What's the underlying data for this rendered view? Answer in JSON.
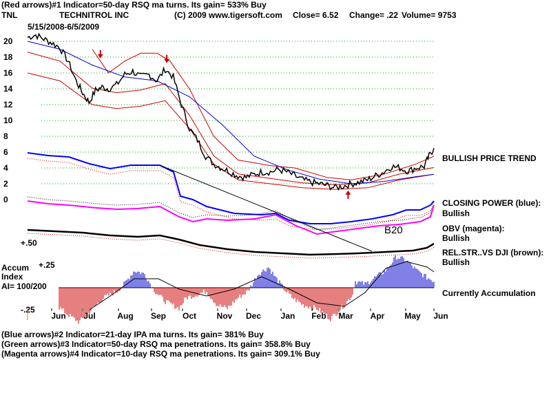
{
  "header": {
    "line1": "(Red arrows)#1 Indicator=50-day RSQ ma turns. Its gain= 533% Buy",
    "ticker": "TNL",
    "company": "TECHNITROL INC",
    "copyright": "(C) 2009 www.tigersoft.com",
    "close": "Close=  6.52",
    "change": "Change= .22",
    "volume": "Volume= 9753",
    "daterange": "5/15/2008-6/5/2009"
  },
  "panel_labels": {
    "trend": "BULLISH PRICE TREND",
    "cp_title": "CLOSING POWER (blue):",
    "cp_value": "Bullish",
    "obv_title": "OBV (magenta):",
    "obv_value": "Bullish",
    "rs_title": "REL.STR..VS DJI (brown):",
    "rs_value": "Bullish",
    "accum_status": "Currently Accumulation",
    "accum_title1": "Accum",
    "accum_title2": "Index",
    "ai": "AI= 100/200",
    "b20": "B20"
  },
  "footer": {
    "line1": "(Blue arrows)#2 Indicator=21-day IPA ma turns. Its gain= 381% Buy",
    "line2": "(Green arrows)#3 Indicator=50-day RSQ ma penetrations. Its gain= 358.8% Buy",
    "line3": "(Magenta arrows)#4 Indicator=10-day RSQ ma penetrations. Its gain= 309.1% Buy"
  },
  "colors": {
    "price": "#000000",
    "bands": "#cc0000",
    "ma_blue": "#0000cc",
    "closing_power": "#0000ff",
    "obv": "#ff00ff",
    "rel_strength": "#000000",
    "accum_pos": "#0000cc",
    "accum_neg": "#cc0000",
    "grid": "#00aa00"
  },
  "chart_data": {
    "type": "line",
    "yticks": [
      0,
      2,
      4,
      6,
      8,
      10,
      12,
      14,
      16,
      18,
      20
    ],
    "ylim": [
      0,
      21
    ],
    "x_month_labels": [
      "Jun",
      "Jul",
      "Aug",
      "Sep",
      "Oct",
      "Nov",
      "Dec",
      "Jan",
      "Feb",
      "Mar",
      "Apr",
      "May",
      "Jun"
    ],
    "accum_ticks": [
      "+.50",
      "+.25",
      "-.25"
    ],
    "price": [
      [
        0,
        20.5
      ],
      [
        5,
        20.8
      ],
      [
        10,
        20.3
      ],
      [
        15,
        19.8
      ],
      [
        20,
        19.2
      ],
      [
        25,
        17.5
      ],
      [
        30,
        15.0
      ],
      [
        34,
        13.5
      ],
      [
        38,
        12.3
      ],
      [
        42,
        13.8
      ],
      [
        46,
        14.2
      ],
      [
        50,
        14.0
      ],
      [
        55,
        14.5
      ],
      [
        60,
        15.8
      ],
      [
        65,
        16.2
      ],
      [
        70,
        15.5
      ],
      [
        75,
        15.8
      ],
      [
        80,
        15.0
      ],
      [
        85,
        16.5
      ],
      [
        90,
        15.5
      ],
      [
        95,
        12.0
      ],
      [
        100,
        9.0
      ],
      [
        105,
        7.5
      ],
      [
        110,
        5.5
      ],
      [
        115,
        4.5
      ],
      [
        120,
        4.0
      ],
      [
        125,
        3.5
      ],
      [
        130,
        3.0
      ],
      [
        135,
        2.8
      ],
      [
        140,
        3.2
      ],
      [
        145,
        3.5
      ],
      [
        150,
        3.5
      ],
      [
        155,
        3.8
      ],
      [
        160,
        3.5
      ],
      [
        165,
        3.0
      ],
      [
        170,
        2.5
      ],
      [
        175,
        2.2
      ],
      [
        180,
        2.0
      ],
      [
        185,
        1.8
      ],
      [
        190,
        1.5
      ],
      [
        195,
        1.7
      ],
      [
        200,
        2.0
      ],
      [
        205,
        2.2
      ],
      [
        210,
        2.5
      ],
      [
        215,
        3.0
      ],
      [
        220,
        3.5
      ],
      [
        225,
        4.2
      ],
      [
        230,
        4.0
      ],
      [
        235,
        3.6
      ],
      [
        240,
        4.0
      ],
      [
        245,
        4.2
      ],
      [
        248,
        5.5
      ],
      [
        251,
        6.5
      ]
    ],
    "ma_blue": [
      [
        0,
        20.0
      ],
      [
        20,
        19.0
      ],
      [
        40,
        17.0
      ],
      [
        60,
        15.5
      ],
      [
        80,
        15.0
      ],
      [
        100,
        13.0
      ],
      [
        120,
        9.5
      ],
      [
        140,
        5.5
      ],
      [
        160,
        3.8
      ],
      [
        180,
        2.6
      ],
      [
        200,
        2.0
      ],
      [
        220,
        2.3
      ],
      [
        240,
        2.9
      ],
      [
        251,
        3.2
      ]
    ],
    "band_upper": [
      [
        40,
        19.0
      ],
      [
        50,
        16.0
      ],
      [
        60,
        17.5
      ],
      [
        70,
        18.5
      ],
      [
        80,
        18.5
      ],
      [
        88,
        17.5
      ],
      [
        100,
        14.0
      ],
      [
        115,
        8.0
      ],
      [
        130,
        5.0
      ],
      [
        150,
        4.3
      ],
      [
        165,
        4.0
      ],
      [
        185,
        2.8
      ],
      [
        200,
        2.5
      ],
      [
        220,
        3.2
      ],
      [
        240,
        4.5
      ],
      [
        251,
        5.5
      ]
    ],
    "band_lower": [
      [
        0,
        16.0
      ],
      [
        20,
        15.0
      ],
      [
        40,
        12.0
      ],
      [
        55,
        11.5
      ],
      [
        70,
        11.8
      ],
      [
        85,
        12.5
      ],
      [
        100,
        9.0
      ],
      [
        115,
        4.5
      ],
      [
        130,
        2.5
      ],
      [
        150,
        2.0
      ],
      [
        170,
        1.5
      ],
      [
        190,
        1.3
      ],
      [
        210,
        1.5
      ],
      [
        230,
        2.5
      ],
      [
        251,
        3.2
      ]
    ],
    "arrows": [
      {
        "color": "#cc0000",
        "dir": "down",
        "x": 45,
        "y": 18.2
      },
      {
        "color": "#cc0000",
        "dir": "down",
        "x": 86,
        "y": 17.6
      },
      {
        "color": "#cc0000",
        "dir": "up",
        "x": 198,
        "y": 0.8
      }
    ]
  }
}
